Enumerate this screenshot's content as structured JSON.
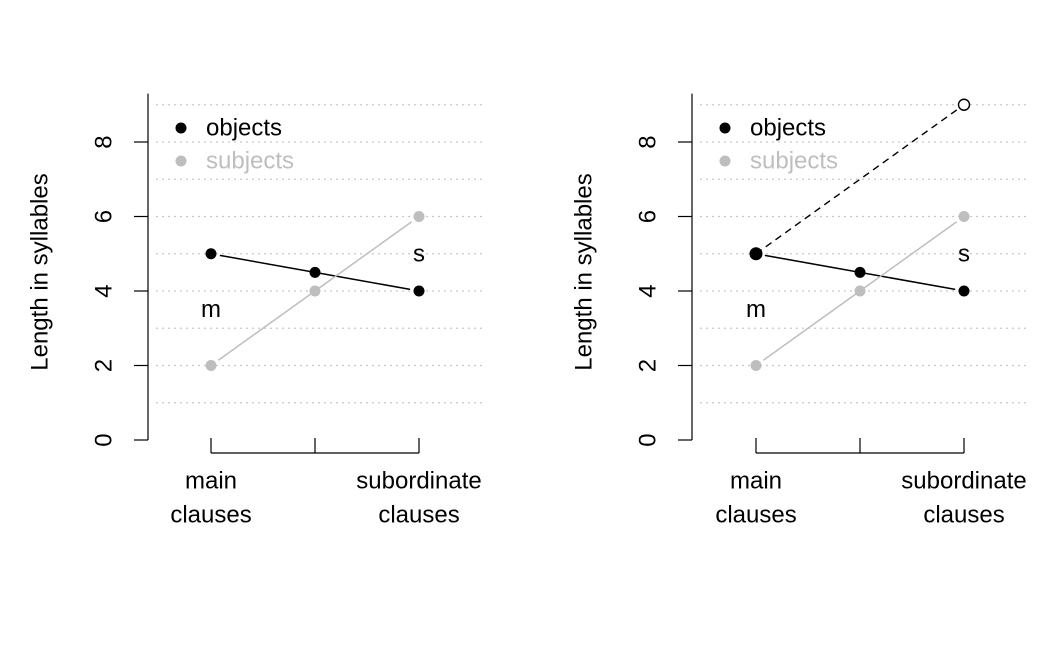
{
  "chart_data": [
    {
      "type": "line",
      "ylabel": "Length in syllables",
      "ylim": [
        0,
        9.3
      ],
      "yticks": [
        "0",
        "2",
        "4",
        "6",
        "8"
      ],
      "grid": "horizontal dotted",
      "x_tick_labels": [
        [
          "main",
          "clauses"
        ],
        [],
        [
          "subordinate",
          "clauses"
        ]
      ],
      "legend_position": "top-left",
      "legend": [
        {
          "label": "objects",
          "color": "#000000"
        },
        {
          "label": "subjects",
          "color": "#bebebe"
        }
      ],
      "series": [
        {
          "name": "objects",
          "color": "#000000",
          "values": [
            5,
            4.5,
            4
          ]
        },
        {
          "name": "subjects",
          "color": "#bebebe",
          "values": [
            2,
            4,
            6
          ]
        }
      ],
      "annotations": [
        {
          "text": "m",
          "x": 1,
          "y": 3.5
        },
        {
          "text": "s",
          "x": 3,
          "y": 5
        }
      ]
    },
    {
      "type": "line",
      "ylabel": "Length in syllables",
      "ylim": [
        0,
        9.3
      ],
      "yticks": [
        "0",
        "2",
        "4",
        "6",
        "8"
      ],
      "grid": "horizontal dotted",
      "x_tick_labels": [
        [
          "main",
          "clauses"
        ],
        [],
        [
          "subordinate",
          "clauses"
        ]
      ],
      "legend_position": "top-left",
      "legend": [
        {
          "label": "objects",
          "color": "#000000"
        },
        {
          "label": "subjects",
          "color": "#bebebe"
        }
      ],
      "series": [
        {
          "name": "objects",
          "color": "#000000",
          "values": [
            5,
            4.5,
            4
          ]
        },
        {
          "name": "subjects",
          "color": "#bebebe",
          "values": [
            2,
            4,
            6
          ]
        }
      ],
      "dashed_projection": {
        "from": [
          1,
          5
        ],
        "to": [
          3,
          9
        ],
        "color": "#000000"
      },
      "annotations": [
        {
          "text": "m",
          "x": 1,
          "y": 3.5
        },
        {
          "text": "s",
          "x": 3,
          "y": 5
        }
      ]
    }
  ]
}
